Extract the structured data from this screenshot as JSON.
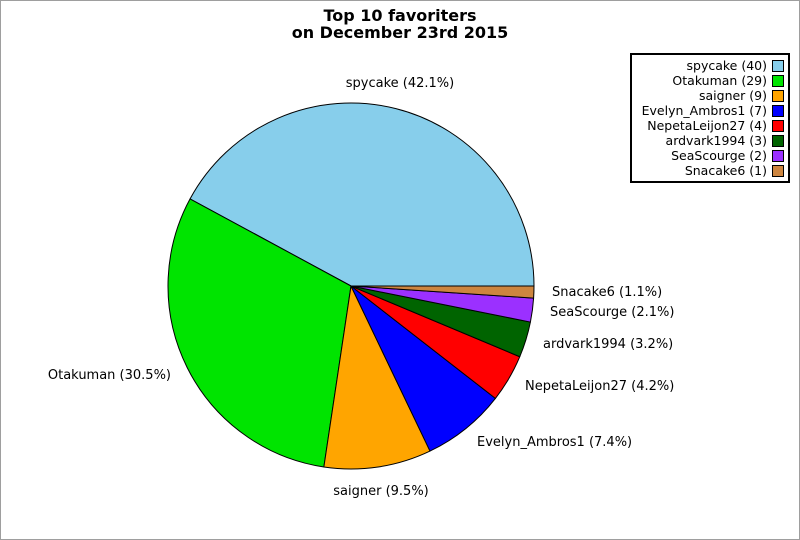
{
  "canvas": {
    "background": "#ffffff",
    "border_color": "#9e9e9e"
  },
  "chart_data": {
    "type": "pie",
    "title_lines": [
      "Top 10 favoriters",
      "on December 23rd 2015"
    ],
    "title": "Top 10 favoriters on December 23rd 2015",
    "total": 95,
    "start_angle_deg": 0,
    "direction": "counterclockwise",
    "legend_position": "upper-right",
    "wedge_outline_color": "#000000",
    "slices": [
      {
        "name": "spycake",
        "count": 40,
        "percent": 42.1,
        "label": "spycake (42.1%)",
        "legend_label": "spycake (40)",
        "color": "#87CEEB"
      },
      {
        "name": "Otakuman",
        "count": 29,
        "percent": 30.5,
        "label": "Otakuman (30.5%)",
        "legend_label": "Otakuman (29)",
        "color": "#00E400"
      },
      {
        "name": "saigner",
        "count": 9,
        "percent": 9.5,
        "label": "saigner (9.5%)",
        "legend_label": "saigner (9)",
        "color": "#FFA500"
      },
      {
        "name": "Evelyn_Ambros1",
        "count": 7,
        "percent": 7.4,
        "label": "Evelyn_Ambros1 (7.4%)",
        "legend_label": "Evelyn_Ambros1 (7)",
        "color": "#0000FF"
      },
      {
        "name": "NepetaLeijon27",
        "count": 4,
        "percent": 4.2,
        "label": "NepetaLeijon27 (4.2%)",
        "legend_label": "NepetaLeijon27 (4)",
        "color": "#FF0000"
      },
      {
        "name": "ardvark1994",
        "count": 3,
        "percent": 3.2,
        "label": "ardvark1994 (3.2%)",
        "legend_label": "ardvark1994 (3)",
        "color": "#006400"
      },
      {
        "name": "SeaScourge",
        "count": 2,
        "percent": 2.1,
        "label": "SeaScourge (2.1%)",
        "legend_label": "SeaScourge (2)",
        "color": "#9B30FF"
      },
      {
        "name": "Snacake6",
        "count": 1,
        "percent": 1.1,
        "label": "Snacake6 (1.1%)",
        "legend_label": "Snacake6 (1)",
        "color": "#CD853F"
      }
    ]
  }
}
